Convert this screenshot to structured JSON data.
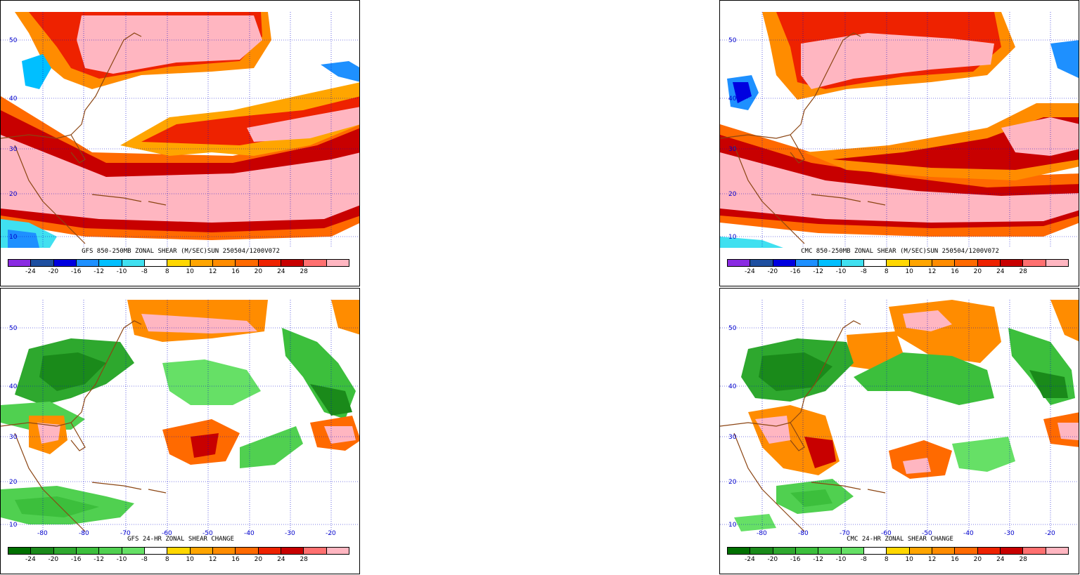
{
  "panels": [
    {
      "id": "gfs-shear",
      "caption": "GFS 850-250MB ZONAL SHEAR (M/SEC)SUN 250504/1200V072",
      "colorbar": {
        "labels": [
          "-24",
          "-20",
          "-16",
          "-12",
          "-10",
          "-8",
          "8",
          "10",
          "12",
          "16",
          "20",
          "24",
          "28"
        ],
        "colors": [
          "#8a2be2",
          "#1e4fa0",
          "#0000e0",
          "#1e90ff",
          "#00bfff",
          "#40e0f0",
          "#ffffff",
          "#ffd700",
          "#ffa500",
          "#ff8c00",
          "#ff6a00",
          "#ee2200",
          "#c80000",
          "#ff7070",
          "#ffb6c1"
        ]
      }
    },
    {
      "id": "cmc-shear",
      "caption": "CMC 850-250MB ZONAL SHEAR (M/SEC)SUN 250504/1200V072",
      "colorbar": {
        "labels": [
          "-24",
          "-20",
          "-16",
          "-12",
          "-10",
          "-8",
          "8",
          "10",
          "12",
          "16",
          "20",
          "24",
          "28"
        ],
        "colors": [
          "#8a2be2",
          "#1e4fa0",
          "#0000e0",
          "#1e90ff",
          "#00bfff",
          "#40e0f0",
          "#ffffff",
          "#ffd700",
          "#ffa500",
          "#ff8c00",
          "#ff6a00",
          "#ee2200",
          "#c80000",
          "#ff7070",
          "#ffb6c1"
        ]
      }
    },
    {
      "id": "gfs-change",
      "caption": "GFS 24-HR ZONAL SHEAR CHANGE",
      "colorbar": {
        "labels": [
          "-24",
          "-20",
          "-16",
          "-12",
          "-10",
          "-8",
          "8",
          "10",
          "12",
          "16",
          "20",
          "24",
          "28"
        ],
        "colors": [
          "#007000",
          "#1a8a1a",
          "#2ea82e",
          "#3cbf3c",
          "#50d050",
          "#66e066",
          "#ffffff",
          "#ffd700",
          "#ffa500",
          "#ff8c00",
          "#ff6a00",
          "#ee2200",
          "#c80000",
          "#ff7070",
          "#ffb6c1"
        ]
      }
    },
    {
      "id": "cmc-change",
      "caption": "CMC 24-HR ZONAL SHEAR CHANGE",
      "colorbar": {
        "labels": [
          "-24",
          "-20",
          "-16",
          "-12",
          "-10",
          "-8",
          "8",
          "10",
          "12",
          "16",
          "20",
          "24",
          "28"
        ],
        "colors": [
          "#007000",
          "#1a8a1a",
          "#2ea82e",
          "#3cbf3c",
          "#50d050",
          "#66e066",
          "#ffffff",
          "#ffd700",
          "#ffa500",
          "#ff8c00",
          "#ff6a00",
          "#ee2200",
          "#c80000",
          "#ff7070",
          "#ffb6c1"
        ]
      }
    }
  ],
  "lat_labels": [
    "50",
    "40",
    "30",
    "20",
    "10"
  ],
  "lon_labels": [
    "-80",
    "-80",
    "-70",
    "-60",
    "-50",
    "-40",
    "-30",
    "-20"
  ],
  "map_colors": {
    "grid": "#0000cc",
    "boundary": "#8b4513"
  }
}
